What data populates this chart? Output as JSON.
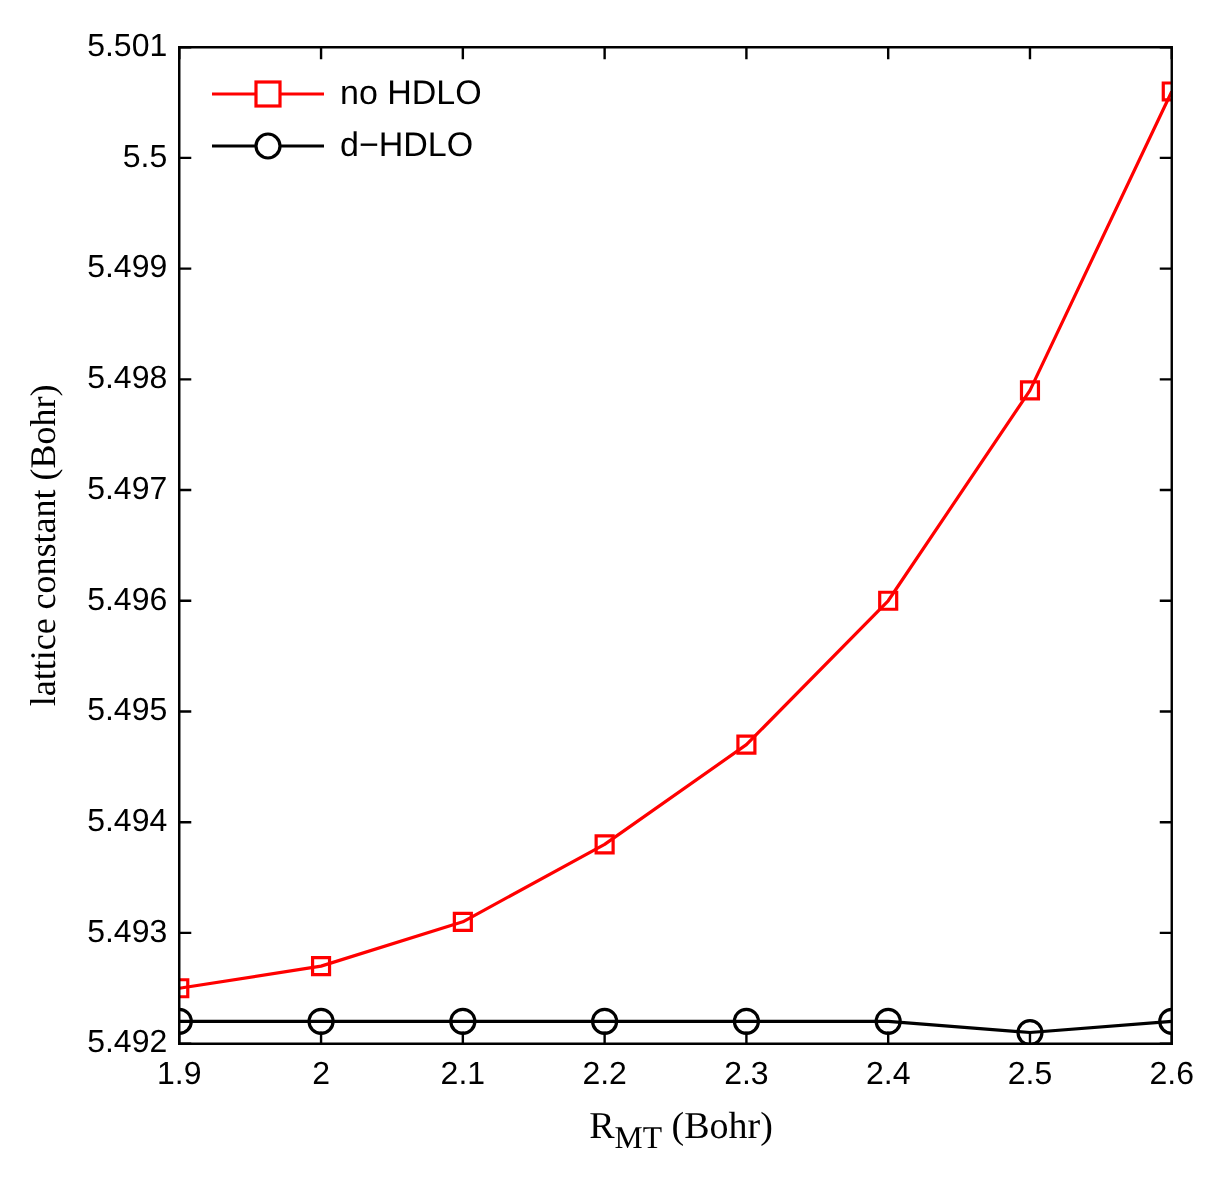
{
  "chart_data": {
    "type": "line",
    "xlabel": "R$_{MT}$ (Bohr)",
    "ylabel": "lattice constant (Bohr)",
    "x": [
      1.9,
      2.0,
      2.1,
      2.2,
      2.3,
      2.4,
      2.5,
      2.6
    ],
    "series": [
      {
        "name": "no HDLO",
        "color": "#ff0000",
        "marker": "square",
        "values": [
          5.4925,
          5.4927,
          5.4931,
          5.4938,
          5.4947,
          5.496,
          5.4979,
          5.5006
        ]
      },
      {
        "name": "d−HDLO",
        "color": "#000000",
        "marker": "circle",
        "values": [
          5.4922,
          5.4922,
          5.4922,
          5.4922,
          5.4922,
          5.4922,
          5.4921,
          5.4922
        ]
      }
    ],
    "xlim": [
      1.9,
      2.6
    ],
    "xticks": [
      1.9,
      2,
      2.1,
      2.2,
      2.3,
      2.4,
      2.5,
      2.6
    ],
    "ylim": [
      5.492,
      5.501
    ],
    "yticks": [
      5.492,
      5.493,
      5.494,
      5.495,
      5.496,
      5.497,
      5.498,
      5.499,
      5.5,
      5.501
    ],
    "grid": false,
    "legend": "top left",
    "line_style": "solid"
  }
}
